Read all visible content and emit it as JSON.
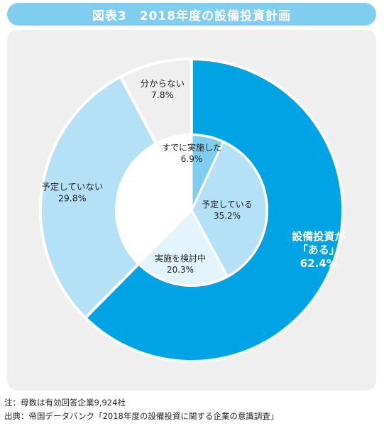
{
  "title": "図表3　2018年度の設備投資計画",
  "chart_data": {
    "type": "pie",
    "subtype": "nested-donut",
    "outer_ring": [
      {
        "label": "設備投資が「ある」",
        "label_lines": [
          "設備投資が",
          "「ある」"
        ],
        "value": 62.4,
        "value_text": "62.4%",
        "color": "#00a3e4"
      },
      {
        "label": "予定していない",
        "label_lines": [
          "予定していない"
        ],
        "value": 29.8,
        "value_text": "29.8%",
        "color": "#b5e1f6"
      },
      {
        "label": "分からない",
        "label_lines": [
          "分からない"
        ],
        "value": 7.8,
        "value_text": "7.8%",
        "color": "#efefef"
      }
    ],
    "inner_ring": [
      {
        "label": "すでに実施した",
        "value": 6.9,
        "value_text": "6.9%",
        "color": "#7fcdef"
      },
      {
        "label": "予定している",
        "value": 35.2,
        "value_text": "35.2%",
        "color": "#b5e1f6"
      },
      {
        "label": "実施を検討中",
        "value": 20.3,
        "value_text": "20.3%",
        "color": "#e3f4fc"
      }
    ]
  },
  "notes": {
    "note": "注：母数は有効回答企業9,924社",
    "source": "出典：帝国データバンク「2018年度の設備投資に関する企業の意識調査」"
  }
}
